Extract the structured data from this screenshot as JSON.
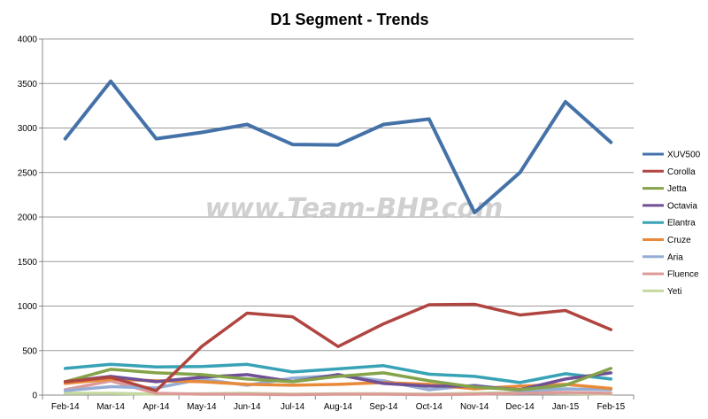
{
  "chart_data": {
    "type": "line",
    "title": "D1 Segment - Trends",
    "xlabel": "",
    "ylabel": "",
    "categories": [
      "Feb-14",
      "Mar-14",
      "Apr-14",
      "May-14",
      "Jun-14",
      "Jul-14",
      "Aug-14",
      "Sep-14",
      "Oct-14",
      "Nov-14",
      "Dec-14",
      "Jan-15",
      "Feb-15"
    ],
    "ylim": [
      0,
      4000
    ],
    "yticks": [
      0,
      500,
      1000,
      1500,
      2000,
      2500,
      3000,
      3500,
      4000
    ],
    "grid": true,
    "legend_position": "right",
    "watermark": "www.Team-BHP.com",
    "series": [
      {
        "name": "XUV500",
        "color": "#4472a8",
        "width": 4,
        "values": [
          2880,
          3525,
          2880,
          2950,
          3040,
          2815,
          2810,
          3040,
          3100,
          2050,
          2500,
          3295,
          2840
        ]
      },
      {
        "name": "Corolla",
        "color": "#b04540",
        "width": 3.5,
        "values": [
          150,
          200,
          50,
          545,
          920,
          880,
          545,
          800,
          1015,
          1020,
          900,
          950,
          735
        ]
      },
      {
        "name": "Jetta",
        "color": "#84a34a",
        "width": 3.5,
        "values": [
          150,
          290,
          250,
          230,
          180,
          150,
          210,
          250,
          160,
          90,
          60,
          110,
          300
        ]
      },
      {
        "name": "Octavia",
        "color": "#6f4f95",
        "width": 3.5,
        "values": [
          150,
          210,
          150,
          200,
          230,
          150,
          230,
          130,
          100,
          100,
          60,
          180,
          250
        ]
      },
      {
        "name": "Elantra",
        "color": "#38a2b6",
        "width": 3.5,
        "values": [
          300,
          345,
          315,
          320,
          345,
          260,
          295,
          330,
          235,
          210,
          140,
          240,
          180
        ]
      },
      {
        "name": "Cruze",
        "color": "#e98a3a",
        "width": 3.5,
        "values": [
          130,
          180,
          160,
          150,
          120,
          110,
          120,
          140,
          120,
          70,
          100,
          120,
          75
        ]
      },
      {
        "name": "Aria",
        "color": "#95add5",
        "width": 3.5,
        "values": [
          50,
          95,
          80,
          180,
          110,
          190,
          220,
          160,
          60,
          110,
          50,
          70,
          60
        ]
      },
      {
        "name": "Fluence",
        "color": "#dc9a98",
        "width": 3.5,
        "values": [
          60,
          160,
          20,
          10,
          10,
          5,
          10,
          10,
          5,
          10,
          20,
          30,
          20
        ]
      },
      {
        "name": "Yeti",
        "color": "#c5d8a0",
        "width": 3.5,
        "values": [
          20,
          20,
          10,
          15,
          20,
          10,
          15,
          15,
          10,
          20,
          30,
          20,
          10
        ]
      }
    ]
  }
}
